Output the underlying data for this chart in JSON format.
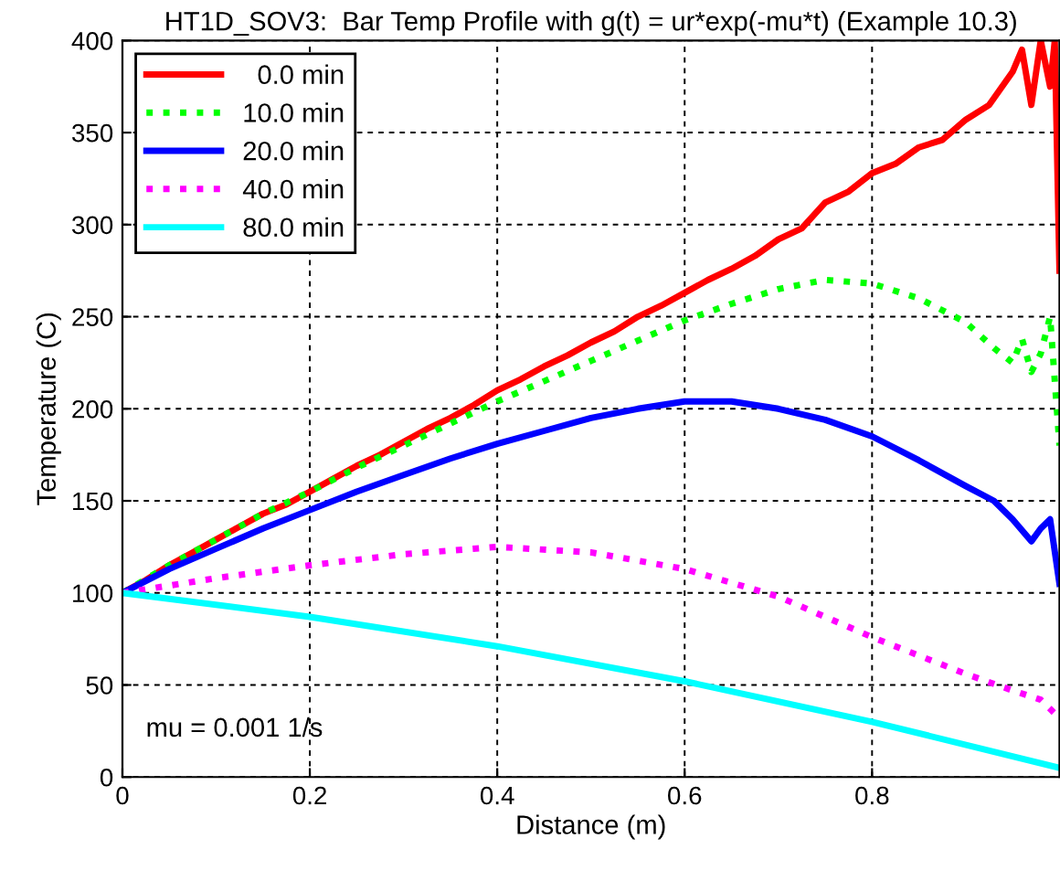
{
  "chart_data": {
    "type": "line",
    "title": "HT1D_SOV3:  Bar Temp Profile with g(t) = ur*exp(-mu*t) (Example 10.3)",
    "xlabel": "Distance (m)",
    "ylabel": "Temperature (C)",
    "annotations": [
      "mu = 0.001 1/s"
    ],
    "xlim": [
      0,
      1
    ],
    "ylim": [
      0,
      400
    ],
    "xticks": [
      0,
      0.2,
      0.4,
      0.6,
      0.8
    ],
    "yticks": [
      0,
      50,
      100,
      150,
      200,
      250,
      300,
      350,
      400
    ],
    "grid": true,
    "legend": "top left",
    "series": [
      {
        "name": "  0.0 min",
        "color": "#ff0000",
        "line_style": "solid",
        "x": [
          0,
          0.025,
          0.05,
          0.075,
          0.1,
          0.125,
          0.15,
          0.175,
          0.2,
          0.225,
          0.25,
          0.275,
          0.3,
          0.325,
          0.35,
          0.375,
          0.4,
          0.425,
          0.45,
          0.475,
          0.5,
          0.525,
          0.55,
          0.575,
          0.6,
          0.625,
          0.65,
          0.675,
          0.7,
          0.725,
          0.75,
          0.775,
          0.8,
          0.825,
          0.85,
          0.875,
          0.9,
          0.925,
          0.95,
          0.96,
          0.97,
          0.98,
          0.99,
          0.995,
          1.0
        ],
        "values": [
          100,
          107,
          115,
          122,
          129,
          136,
          143,
          148,
          155,
          162,
          169,
          175,
          182,
          189,
          195,
          202,
          210,
          216,
          223,
          229,
          236,
          242,
          250,
          256,
          263,
          270,
          276,
          283,
          292,
          298,
          312,
          318,
          328,
          333,
          342,
          346,
          357,
          365,
          383,
          395,
          365,
          400,
          375,
          400,
          275
        ]
      },
      {
        "name": "10.0 min",
        "color": "#00ff00",
        "line_style": "dotted",
        "x": [
          0,
          0.05,
          0.1,
          0.15,
          0.2,
          0.25,
          0.3,
          0.35,
          0.4,
          0.45,
          0.5,
          0.55,
          0.6,
          0.65,
          0.7,
          0.75,
          0.8,
          0.85,
          0.9,
          0.93,
          0.95,
          0.96,
          0.97,
          0.98,
          0.99,
          1.0
        ],
        "values": [
          100,
          115,
          129,
          143,
          155,
          168,
          180,
          192,
          204,
          215,
          226,
          237,
          248,
          257,
          265,
          270,
          268,
          260,
          247,
          233,
          225,
          238,
          220,
          230,
          250,
          180
        ]
      },
      {
        "name": "20.0 min",
        "color": "#0000ff",
        "line_style": "solid",
        "x": [
          0,
          0.05,
          0.1,
          0.15,
          0.2,
          0.25,
          0.3,
          0.35,
          0.4,
          0.45,
          0.5,
          0.55,
          0.6,
          0.65,
          0.7,
          0.75,
          0.8,
          0.85,
          0.9,
          0.93,
          0.95,
          0.97,
          0.98,
          0.99,
          1.0
        ],
        "values": [
          100,
          113,
          124,
          135,
          145,
          155,
          164,
          173,
          181,
          188,
          195,
          200,
          204,
          204,
          200,
          194,
          185,
          172,
          158,
          150,
          140,
          128,
          135,
          140,
          105
        ]
      },
      {
        "name": "40.0 min",
        "color": "#ff00ff",
        "line_style": "dotted",
        "x": [
          0,
          0.1,
          0.2,
          0.3,
          0.4,
          0.5,
          0.6,
          0.7,
          0.8,
          0.85,
          0.9,
          0.95,
          0.98,
          1.0
        ],
        "values": [
          100,
          108,
          115,
          121,
          125,
          122,
          113,
          98,
          76,
          66,
          56,
          47,
          42,
          32
        ]
      },
      {
        "name": "80.0 min",
        "color": "#00ffff",
        "line_style": "solid",
        "x": [
          0,
          0.2,
          0.4,
          0.6,
          0.8,
          1.0
        ],
        "values": [
          100,
          87,
          71,
          52,
          30,
          5
        ]
      }
    ]
  }
}
